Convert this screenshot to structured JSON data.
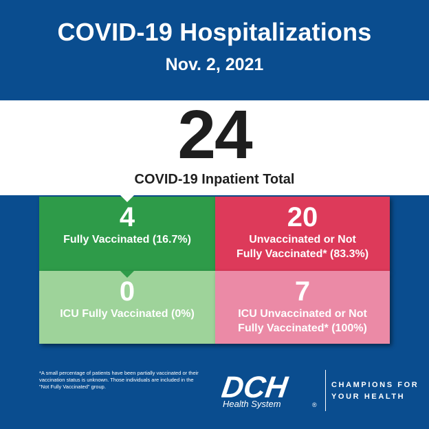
{
  "header": {
    "title": "COVID-19 Hospitalizations",
    "date": "Nov. 2, 2021"
  },
  "total": {
    "value": "24",
    "label": "COVID-19 Inpatient Total"
  },
  "boxes": [
    {
      "value": "4",
      "label": "Fully Vaccinated (16.7%)",
      "color": "#2e9b49"
    },
    {
      "value": "20",
      "label_line1": "Unvaccinated or Not",
      "label_line2": "Fully Vaccinated* (83.3%)",
      "color": "#dd3a5a"
    },
    {
      "value": "0",
      "label": "ICU Fully Vaccinated (0%)",
      "color": "#9ed39a"
    },
    {
      "value": "7",
      "label_line1": "ICU Unvaccinated or Not",
      "label_line2": "Fully Vaccinated* (100%)",
      "color": "#eb8aa6"
    }
  ],
  "footnote": "*A small percentage of patients have been partially vaccinated or their vaccination status is unknown. Those individuals are included in the \"Not Fully Vaccinated\" group.",
  "brand": {
    "logo_text": "DCH",
    "logo_subtext": "Health System",
    "registered": "®",
    "tagline_line1": "CHAMPIONS FOR",
    "tagline_line2": "YOUR HEALTH"
  },
  "colors": {
    "background": "#0a4d8f",
    "band": "#ffffff"
  }
}
